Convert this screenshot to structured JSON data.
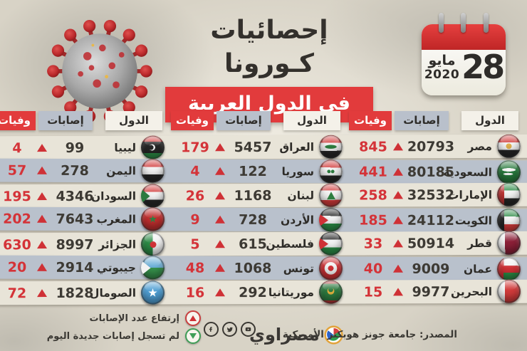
{
  "header": {
    "title_line1": "إحصائيات كـورونا",
    "title_line2": "في الدول العربية"
  },
  "calendar": {
    "day": "28",
    "month": "مايو",
    "year": "2020"
  },
  "table": {
    "headers": {
      "country": "الدول",
      "cases": "إصابات",
      "deaths": "وفيات"
    },
    "groups": [
      {
        "position": "right",
        "rows": [
          {
            "country": "مصر",
            "flag": "eg",
            "cases": "20793",
            "deaths": "845",
            "trend": "up"
          },
          {
            "country": "السعودية",
            "flag": "sa",
            "cases": "80185",
            "deaths": "441",
            "trend": "up"
          },
          {
            "country": "الإمارات",
            "flag": "ae",
            "cases": "32532",
            "deaths": "258",
            "trend": "up"
          },
          {
            "country": "الكويت",
            "flag": "kw",
            "cases": "24112",
            "deaths": "185",
            "trend": "up"
          },
          {
            "country": "قطر",
            "flag": "qa",
            "cases": "50914",
            "deaths": "33",
            "trend": "up"
          },
          {
            "country": "عمان",
            "flag": "om",
            "cases": "9009",
            "deaths": "40",
            "trend": "up"
          },
          {
            "country": "البحرين",
            "flag": "bh",
            "cases": "9977",
            "deaths": "15",
            "trend": "up"
          }
        ]
      },
      {
        "position": "middle",
        "rows": [
          {
            "country": "العراق",
            "flag": "iq",
            "cases": "5457",
            "deaths": "179",
            "trend": "up"
          },
          {
            "country": "سوريا",
            "flag": "sy",
            "cases": "122",
            "deaths": "4",
            "trend": "up"
          },
          {
            "country": "لبنان",
            "flag": "lb",
            "cases": "1168",
            "deaths": "26",
            "trend": "up"
          },
          {
            "country": "الأردن",
            "flag": "jo",
            "cases": "728",
            "deaths": "9",
            "trend": "up"
          },
          {
            "country": "فلسطين",
            "flag": "ps",
            "cases": "615",
            "deaths": "5",
            "trend": "up"
          },
          {
            "country": "تونس",
            "flag": "tn",
            "cases": "1068",
            "deaths": "48",
            "trend": "up"
          },
          {
            "country": "موريتانيا",
            "flag": "mr",
            "cases": "292",
            "deaths": "16",
            "trend": "up"
          }
        ]
      },
      {
        "position": "left",
        "rows": [
          {
            "country": "ليبيا",
            "flag": "ly",
            "cases": "99",
            "deaths": "4",
            "trend": "up"
          },
          {
            "country": "اليمن",
            "flag": "ye",
            "cases": "278",
            "deaths": "57",
            "trend": "up"
          },
          {
            "country": "السودان",
            "flag": "sd",
            "cases": "4346",
            "deaths": "195",
            "trend": "up"
          },
          {
            "country": "المغرب",
            "flag": "ma",
            "cases": "7643",
            "deaths": "202",
            "trend": "up"
          },
          {
            "country": "الجزائر",
            "flag": "dz",
            "cases": "8997",
            "deaths": "630",
            "trend": "up"
          },
          {
            "country": "جيبوتي",
            "flag": "dj",
            "cases": "2914",
            "deaths": "20",
            "trend": "up"
          },
          {
            "country": "الصومال",
            "flag": "so",
            "cases": "1828",
            "deaths": "72",
            "trend": "up"
          }
        ]
      }
    ]
  },
  "legend": [
    {
      "icon": "up-triangle",
      "label": "إرتفاع عدد الإصابات"
    },
    {
      "icon": "down-triangle",
      "label": "لم تسجل إصابات جديدة اليوم"
    }
  ],
  "footer": {
    "brand": "مصراوي",
    "source": "المصدر: جامعة جونز هوبكنز الأمريكية",
    "social": [
      "facebook",
      "twitter",
      "youtube"
    ]
  },
  "colors": {
    "accent_red": "#e23b3c",
    "deaths_red": "#d43338",
    "band_light": "#e8e4d8",
    "band_gray": "#b9c1cc",
    "paper": "#d8d3c6"
  },
  "chart_data": {
    "type": "table",
    "title": "إحصائيات كورونا في الدول العربية",
    "date": "28 مايو 2020",
    "columns": [
      "الدول",
      "إصابات",
      "وفيات"
    ],
    "rows": [
      [
        "مصر",
        20793,
        845
      ],
      [
        "السعودية",
        80185,
        441
      ],
      [
        "الإمارات",
        32532,
        258
      ],
      [
        "الكويت",
        24112,
        185
      ],
      [
        "قطر",
        50914,
        33
      ],
      [
        "عمان",
        9009,
        40
      ],
      [
        "البحرين",
        9977,
        15
      ],
      [
        "العراق",
        5457,
        179
      ],
      [
        "سوريا",
        122,
        4
      ],
      [
        "لبنان",
        1168,
        26
      ],
      [
        "الأردن",
        728,
        9
      ],
      [
        "فلسطين",
        615,
        5
      ],
      [
        "تونس",
        1068,
        48
      ],
      [
        "موريتانيا",
        292,
        16
      ],
      [
        "ليبيا",
        99,
        4
      ],
      [
        "اليمن",
        278,
        57
      ],
      [
        "السودان",
        4346,
        195
      ],
      [
        "المغرب",
        7643,
        202
      ],
      [
        "الجزائر",
        8997,
        630
      ],
      [
        "جيبوتي",
        2914,
        20
      ],
      [
        "الصومال",
        1828,
        72
      ]
    ],
    "source": "جامعة جونز هوبكنز الأمريكية"
  }
}
